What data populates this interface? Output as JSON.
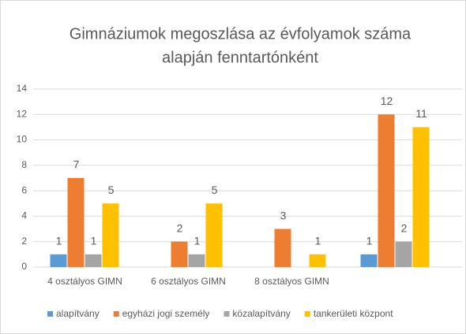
{
  "chart_data": {
    "type": "bar",
    "title": [
      "Gimnáziumok megoszlása az évfolyamok száma",
      "alapján fenntartónként"
    ],
    "categories": [
      "4 osztályos GIMN",
      "6 osztályos GIMN",
      "8 osztályos GIMN",
      null
    ],
    "series": [
      {
        "name": "alapítvány",
        "color": "#5b9bd5",
        "values": [
          1,
          null,
          null,
          1
        ]
      },
      {
        "name": "egyházi jogi személy",
        "color": "#ed7d31",
        "values": [
          7,
          2,
          3,
          12
        ]
      },
      {
        "name": "közalapítvány",
        "color": "#a5a5a5",
        "values": [
          1,
          1,
          null,
          2
        ]
      },
      {
        "name": "tankerületi központ",
        "color": "#ffc000",
        "values": [
          5,
          5,
          1,
          11
        ]
      }
    ],
    "ylim": [
      0,
      14
    ],
    "yticks": [
      0,
      2,
      4,
      6,
      8,
      10,
      12,
      14
    ],
    "grid": true,
    "legend": "bottom"
  }
}
